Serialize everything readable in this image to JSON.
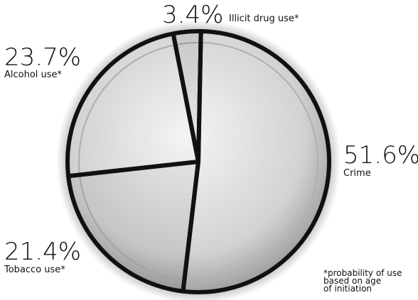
{
  "chart_data": {
    "type": "pie",
    "categories": [
      "Crime",
      "Tobacco use*",
      "Alcohol use*",
      "Illicit drug use*"
    ],
    "values": [
      51.6,
      21.4,
      23.7,
      3.4
    ],
    "value_labels": [
      "51.6%",
      "21.4%",
      "23.7%",
      "3.4%"
    ],
    "footnote": [
      "*probability of use",
      "based on age",
      "of initiation"
    ]
  }
}
